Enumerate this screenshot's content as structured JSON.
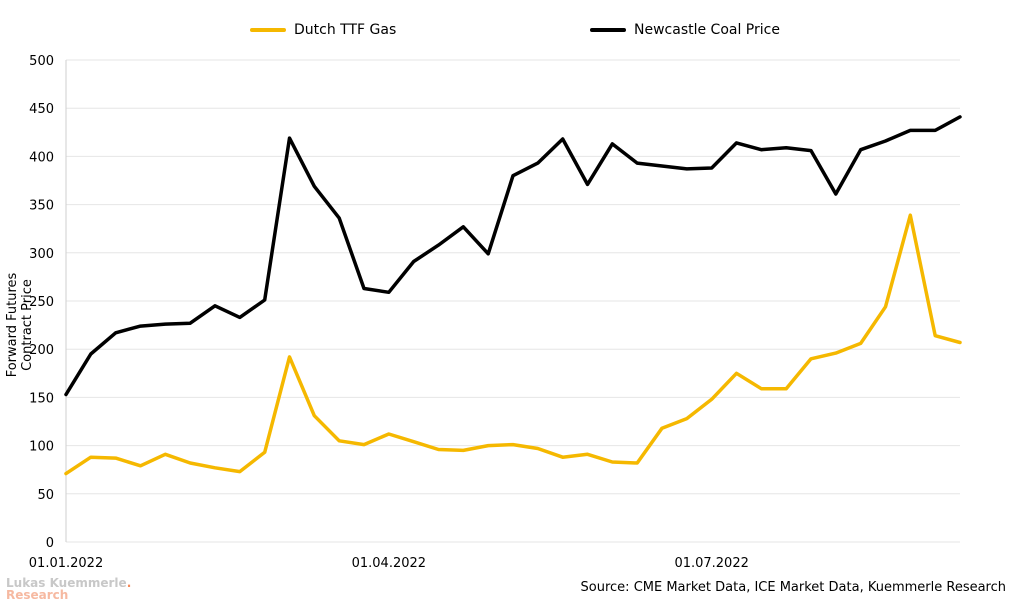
{
  "legend": {
    "series0": "Dutch TTF Gas",
    "series1": "Newcastle Coal Price"
  },
  "source": "Source: CME Market Data, ICE Market Data, Kuemmerle Research",
  "logo": {
    "line1": "Lukas Kuemmerle",
    "line2": "Research"
  },
  "colors": {
    "gas": "#f5b800",
    "coal": "#000000",
    "grid": "#e6e6e6"
  },
  "chart_data": {
    "type": "line",
    "title": "",
    "xlabel": "",
    "ylabel": "Forward Futures Contract Price",
    "ylim": [
      0,
      500
    ],
    "yticks": [
      0,
      50,
      100,
      150,
      200,
      250,
      300,
      350,
      400,
      450,
      500
    ],
    "xlim": [
      0,
      36
    ],
    "x_ticks": [
      {
        "x": 0,
        "label": "01.01.2022"
      },
      {
        "x": 13,
        "label": "01.04.2022"
      },
      {
        "x": 26,
        "label": "01.07.2022"
      }
    ],
    "series": [
      {
        "name": "Dutch TTF Gas",
        "color": "#f5b800",
        "values": [
          71,
          88,
          87,
          79,
          91,
          82,
          77,
          73,
          93,
          192,
          131,
          105,
          101,
          112,
          104,
          96,
          95,
          100,
          101,
          97,
          88,
          91,
          83,
          82,
          118,
          128,
          148,
          175,
          159,
          159,
          190,
          196,
          206,
          244,
          339,
          214,
          207
        ]
      },
      {
        "name": "Newcastle Coal Price",
        "color": "#000000",
        "values": [
          153,
          195,
          217,
          224,
          226,
          227,
          245,
          233,
          251,
          419,
          369,
          336,
          263,
          259,
          291,
          308,
          327,
          299,
          380,
          393,
          418,
          371,
          413,
          393,
          390,
          387,
          388,
          414,
          407,
          409,
          406,
          361,
          407,
          416,
          427,
          427,
          441
        ]
      }
    ]
  }
}
